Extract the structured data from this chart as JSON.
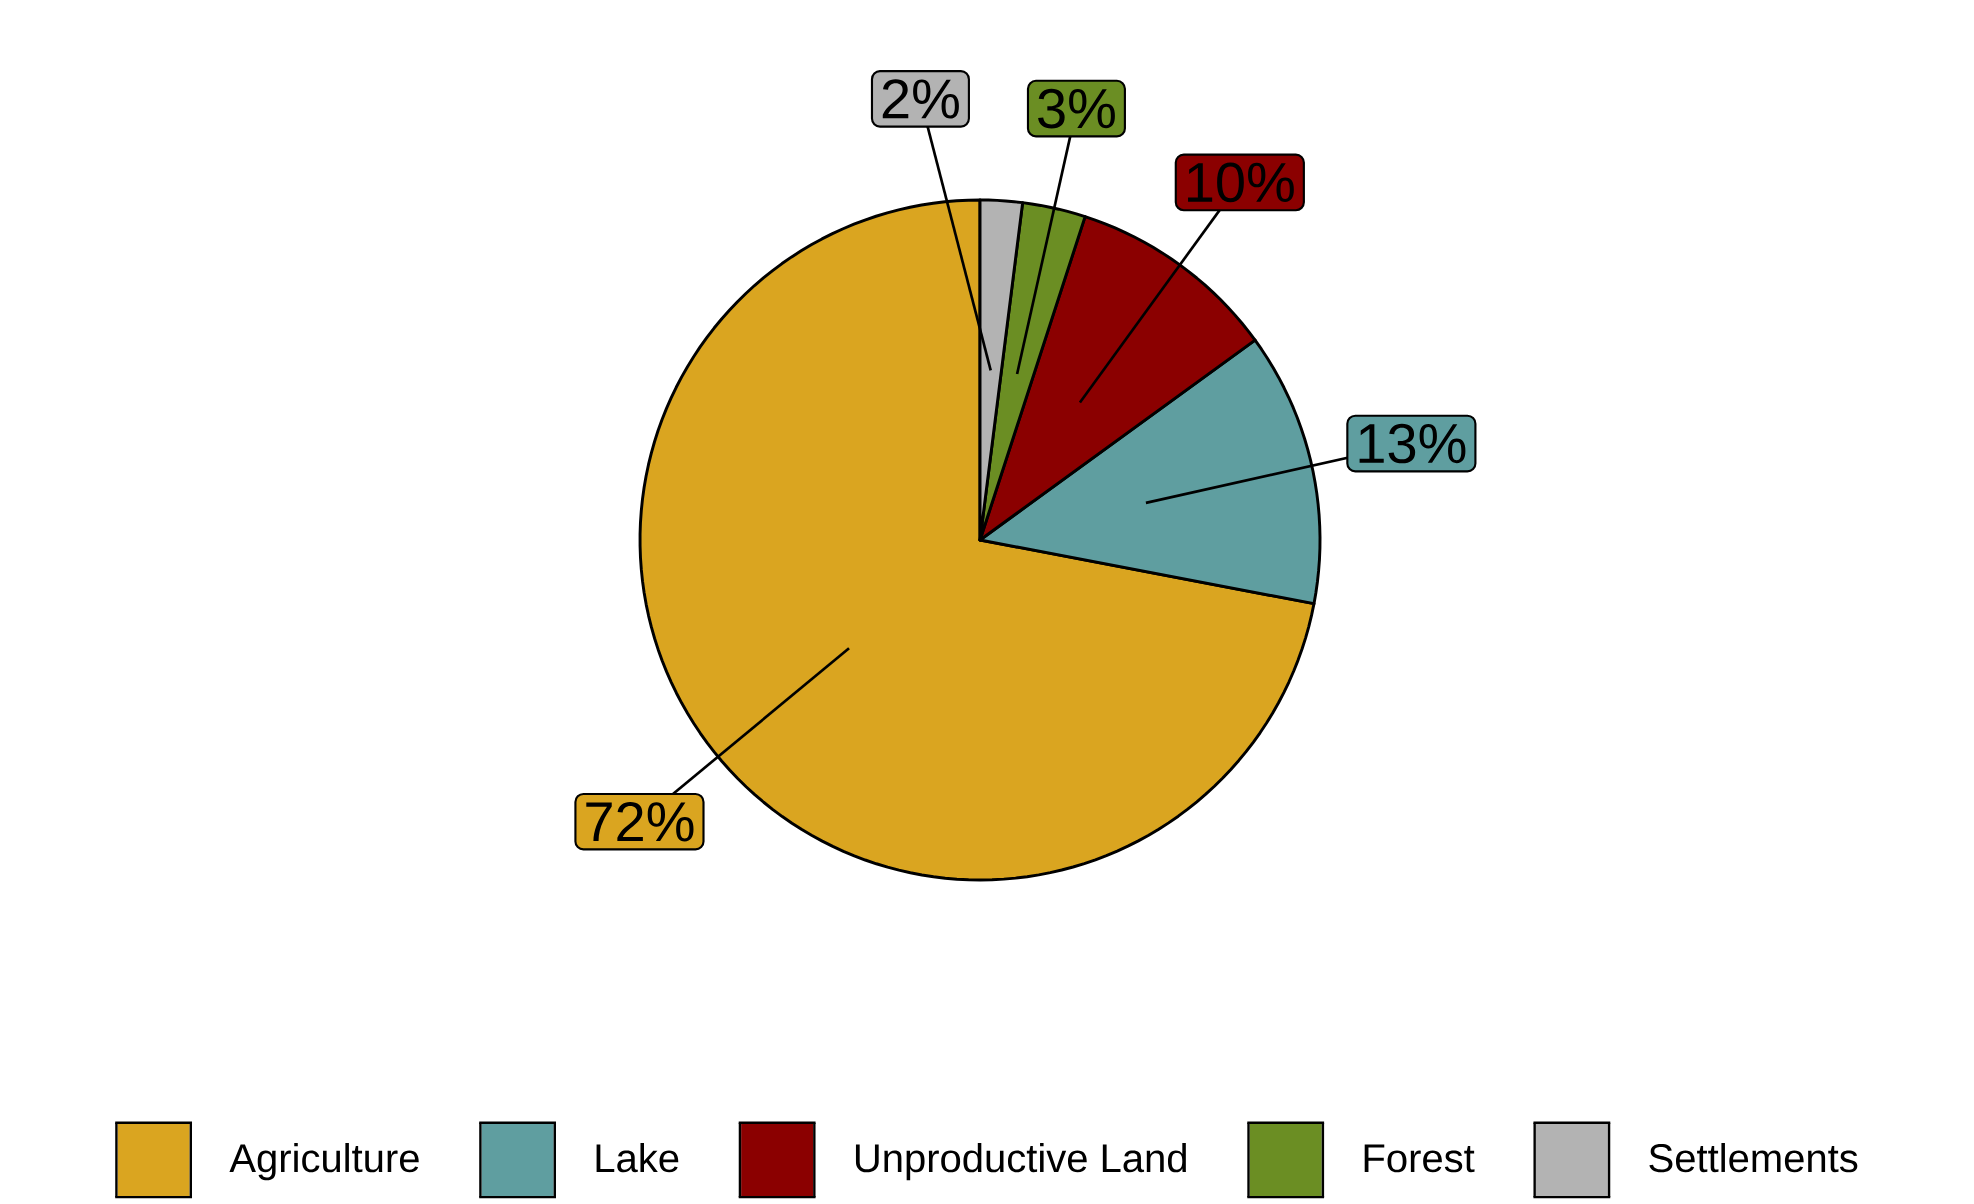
{
  "chart_data": {
    "type": "pie",
    "categories": [
      "Agriculture",
      "Lake",
      "Unproductive Land",
      "Forest",
      "Settlements"
    ],
    "values": [
      72,
      13,
      10,
      3,
      2
    ],
    "value_labels": [
      "72%",
      "13%",
      "10%",
      "3%",
      "2%"
    ],
    "colors": [
      "#daa520",
      "#5f9ea0",
      "#8b0000",
      "#6b8e23",
      "#b3b3b3"
    ],
    "legend": "bottom"
  }
}
